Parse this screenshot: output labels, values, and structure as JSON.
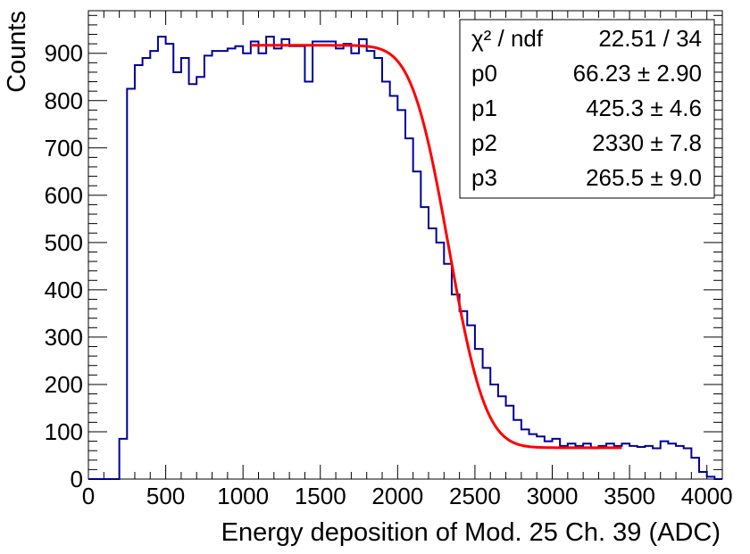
{
  "chart_data": {
    "type": "histogram",
    "xlabel": "Energy deposition of Mod. 25 Ch. 39 (ADC)",
    "ylabel": "Counts",
    "xlim": [
      0,
      4100
    ],
    "ylim": [
      0,
      990
    ],
    "x_ticks": [
      0,
      500,
      1000,
      1500,
      2000,
      2500,
      3000,
      3500,
      4000
    ],
    "y_ticks": [
      0,
      100,
      200,
      300,
      400,
      500,
      600,
      700,
      800,
      900
    ],
    "x_tick_labels": [
      "0",
      "500",
      "1000",
      "1500",
      "2000",
      "2500",
      "3000",
      "3500",
      "4000"
    ],
    "y_tick_labels": [
      "0",
      "100",
      "200",
      "300",
      "400",
      "500",
      "600",
      "700",
      "800",
      "900"
    ],
    "bin_width": 50,
    "bin_start": 0,
    "histogram_color": "#000099",
    "histogram_values": [
      0,
      0,
      0,
      0,
      85,
      825,
      875,
      890,
      905,
      935,
      920,
      860,
      890,
      835,
      850,
      895,
      905,
      905,
      910,
      915,
      900,
      925,
      900,
      935,
      910,
      930,
      915,
      915,
      840,
      925,
      925,
      925,
      910,
      920,
      900,
      930,
      905,
      890,
      840,
      810,
      780,
      720,
      650,
      575,
      530,
      500,
      455,
      390,
      355,
      325,
      275,
      235,
      200,
      175,
      155,
      125,
      105,
      95,
      90,
      80,
      85,
      70,
      75,
      70,
      75,
      65,
      70,
      75,
      70,
      75,
      70,
      68,
      70,
      65,
      80,
      75,
      70,
      65,
      45,
      15,
      5,
      0
    ],
    "fit_curve": {
      "color": "#ff0000",
      "x_range": [
        1050,
        3450
      ],
      "formula": "p0 + p1 * (1 - erf((x - p2) / p3))",
      "params": {
        "p0": 66.23,
        "p1": 425.3,
        "p2": 2330,
        "p3": 265.5
      }
    }
  },
  "stats_box": {
    "chi2_label": "χ² / ndf",
    "chi2_value": "22.51 / 34",
    "rows": [
      {
        "label": "p0",
        "value": "66.23 ± 2.90"
      },
      {
        "label": "p1",
        "value": "425.3 ± 4.6"
      },
      {
        "label": "p2",
        "value": "2330 ± 7.8"
      },
      {
        "label": "p3",
        "value": "265.5 ± 9.0"
      }
    ]
  }
}
